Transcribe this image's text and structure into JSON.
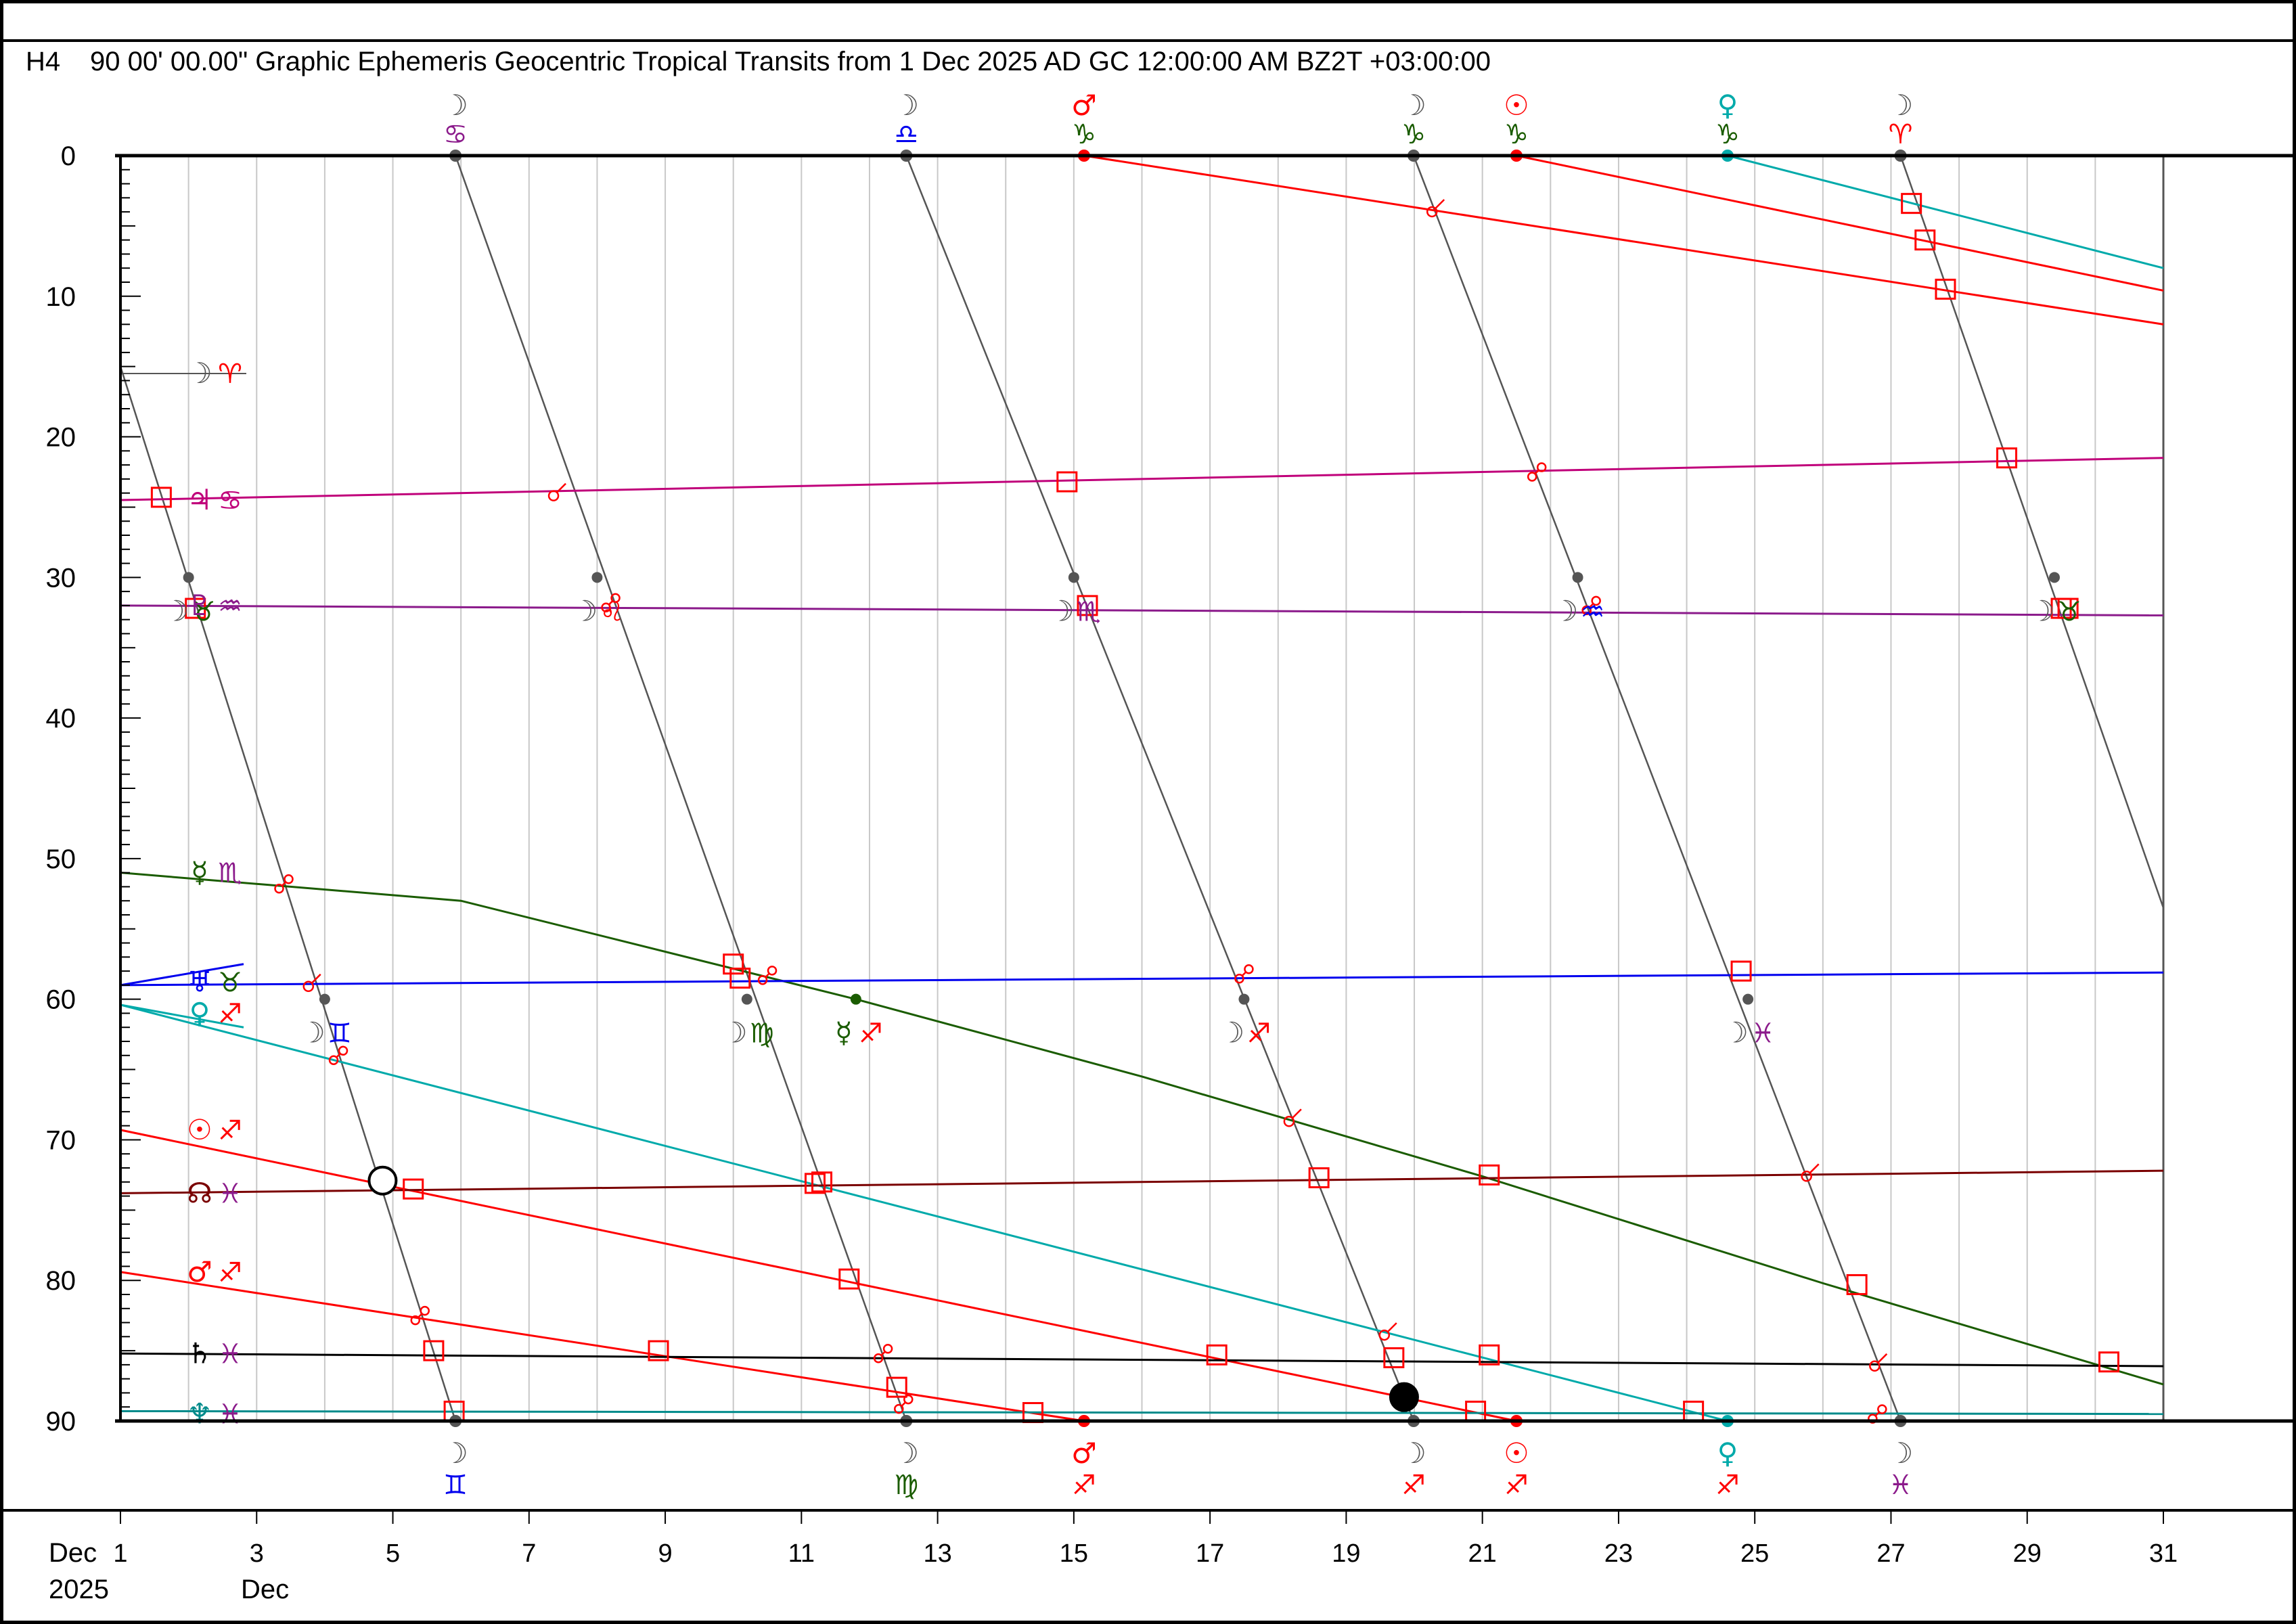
{
  "header": {
    "chart_id": "H4",
    "title": "90 00' 00.00\" Graphic Ephemeris Geocentric Tropical Transits from 1 Dec 2025 AD GC 12:00:00 AM BZ2T +03:00:00"
  },
  "x_axis": {
    "month_label": "Dec",
    "year_label": "2025",
    "start_month_label": "Dec",
    "ticks": [
      1,
      3,
      5,
      7,
      9,
      11,
      13,
      15,
      17,
      19,
      21,
      23,
      25,
      27,
      29,
      31
    ]
  },
  "colors": {
    "moon": "#555555",
    "sun": "#ff0000",
    "mars": "#ff0000",
    "venus": "#00aaaa",
    "mercury": "#1a5c00",
    "jupiter": "#c0007a",
    "pluto": "#8b1a8b",
    "uranus": "#0000ee",
    "node": "#7a0000",
    "saturn": "#000000",
    "neptune": "#008b8b",
    "aspect": "#ff0000",
    "grid": "#c8c8c8"
  },
  "chart_data": {
    "type": "line",
    "title": "90 00' 00.00\" Graphic Ephemeris Geocentric Tropical Transits from 1 Dec 2025 AD GC 12:00:00 AM BZ2T +03:00:00",
    "xlabel": "",
    "ylabel": "",
    "xlim": [
      1,
      31
    ],
    "ylim": [
      90,
      0
    ],
    "y_ticks": [
      0,
      10,
      20,
      30,
      40,
      50,
      60,
      70,
      80,
      90
    ],
    "grid": true,
    "series": [
      {
        "name": "Moon",
        "sign_start": "♈",
        "points": [
          [
            1.0,
            15
          ],
          [
            5.92,
            90
          ]
        ],
        "color": "#555555",
        "glyph": "☽"
      },
      {
        "name": "Moon",
        "points": [
          [
            5.92,
            0
          ],
          [
            12.54,
            90
          ]
        ],
        "color": "#555555"
      },
      {
        "name": "Moon",
        "points": [
          [
            12.54,
            0
          ],
          [
            19.99,
            90
          ]
        ],
        "color": "#555555"
      },
      {
        "name": "Moon",
        "points": [
          [
            19.99,
            0
          ],
          [
            27.14,
            90
          ]
        ],
        "color": "#555555"
      },
      {
        "name": "Moon",
        "points": [
          [
            27.14,
            0
          ],
          [
            31.0,
            53.5
          ]
        ],
        "color": "#555555"
      },
      {
        "name": "Jupiter",
        "sign_start": "♋",
        "points": [
          [
            1,
            24.5
          ],
          [
            31,
            21.5
          ]
        ],
        "color": "#c0007a",
        "glyph": "♃"
      },
      {
        "name": "Pluto",
        "sign_start": "♒",
        "points": [
          [
            1,
            32.0
          ],
          [
            31,
            32.7
          ]
        ],
        "color": "#8b1a8b",
        "glyph": "♇"
      },
      {
        "name": "Mercury",
        "sign_start": "♏",
        "points": [
          [
            1,
            51.0
          ],
          [
            6,
            53.0
          ],
          [
            11.8,
            60.0
          ],
          [
            16,
            65.5
          ],
          [
            21,
            72.6
          ],
          [
            26,
            80.2
          ],
          [
            31,
            87.4
          ]
        ],
        "color": "#1a5c00",
        "glyph": "☿"
      },
      {
        "name": "Uranus",
        "sign_start": "♉",
        "points": [
          [
            1,
            59.0
          ],
          [
            31,
            58.1
          ]
        ],
        "color": "#0000ee",
        "glyph": "♅"
      },
      {
        "name": "Venus",
        "sign_start": "♐",
        "points": [
          [
            1,
            60.4
          ],
          [
            24.6,
            90
          ]
        ],
        "color": "#00aaaa",
        "glyph": "♀"
      },
      {
        "name": "Venus",
        "points": [
          [
            24.6,
            0
          ],
          [
            31,
            8.0
          ]
        ],
        "color": "#00aaaa"
      },
      {
        "name": "Sun",
        "sign_start": "♐",
        "points": [
          [
            1,
            69.3
          ],
          [
            21.5,
            90
          ]
        ],
        "color": "#ff0000",
        "glyph": "☉"
      },
      {
        "name": "Sun",
        "points": [
          [
            21.5,
            0
          ],
          [
            31,
            9.6
          ]
        ],
        "color": "#ff0000"
      },
      {
        "name": "North Node",
        "sign_start": "♓",
        "points": [
          [
            1,
            73.8
          ],
          [
            31,
            72.2
          ]
        ],
        "color": "#7a0000",
        "glyph": "☊"
      },
      {
        "name": "Mars",
        "sign_start": "♐",
        "points": [
          [
            1,
            79.4
          ],
          [
            15.15,
            90
          ]
        ],
        "color": "#ff0000",
        "glyph": "♂"
      },
      {
        "name": "Mars",
        "points": [
          [
            15.15,
            0
          ],
          [
            31,
            12.0
          ]
        ],
        "color": "#ff0000"
      },
      {
        "name": "Saturn",
        "sign_start": "♓",
        "points": [
          [
            1,
            85.2
          ],
          [
            31,
            86.1
          ]
        ],
        "color": "#000000",
        "glyph": "♄"
      },
      {
        "name": "Neptune",
        "sign_start": "♓",
        "points": [
          [
            1,
            89.3
          ],
          [
            31,
            89.5
          ]
        ],
        "color": "#008b8b",
        "glyph": "♆"
      }
    ],
    "left_labels": [
      {
        "y": 15.5,
        "glyph": "☽",
        "sign": "♈",
        "color": "#555555",
        "sign_color": "#ff0000"
      },
      {
        "y": 24.5,
        "glyph": "♃",
        "sign": "♋",
        "color": "#c0007a",
        "sign_color": "#c0007a"
      },
      {
        "y": 32.0,
        "glyph": "♇",
        "sign": "♒",
        "color": "#8b1a8b",
        "sign_color": "#8b1a8b"
      },
      {
        "y": 51.0,
        "glyph": "☿",
        "sign": "♏",
        "color": "#1a5c00",
        "sign_color": "#8b1a8b"
      },
      {
        "y": 58.8,
        "glyph": "♅",
        "sign": "♉",
        "color": "#0000ee",
        "sign_color": "#1a5c00"
      },
      {
        "y": 61.0,
        "glyph": "♀",
        "sign": "♐",
        "color": "#00aaaa",
        "sign_color": "#ff0000"
      },
      {
        "y": 69.3,
        "glyph": "☉",
        "sign": "♐",
        "color": "#ff0000",
        "sign_color": "#ff0000"
      },
      {
        "y": 73.8,
        "glyph": "☊",
        "sign": "♓",
        "color": "#7a0000",
        "sign_color": "#8b1a8b"
      },
      {
        "y": 79.4,
        "glyph": "♂",
        "sign": "♐",
        "color": "#ff0000",
        "sign_color": "#ff0000"
      },
      {
        "y": 85.2,
        "glyph": "♄",
        "sign": "♓",
        "color": "#000000",
        "sign_color": "#8b1a8b"
      },
      {
        "y": 89.5,
        "glyph": "♆",
        "sign": "♓",
        "color": "#008b8b",
        "sign_color": "#8b1a8b"
      }
    ],
    "top_labels": [
      {
        "x": 5.92,
        "glyph": "☽",
        "sign": "♋",
        "color": "#555555",
        "sign_color": "#8b1a8b",
        "dot": "#555555"
      },
      {
        "x": 12.54,
        "glyph": "☽",
        "sign": "♎",
        "color": "#555555",
        "sign_color": "#0000ee",
        "dot": "#555555"
      },
      {
        "x": 15.15,
        "glyph": "♂",
        "sign": "♑",
        "color": "#ff0000",
        "sign_color": "#1a5c00",
        "dot": "#ff0000"
      },
      {
        "x": 19.99,
        "glyph": "☽",
        "sign": "♑",
        "color": "#555555",
        "sign_color": "#1a5c00",
        "dot": "#555555"
      },
      {
        "x": 21.5,
        "glyph": "☉",
        "sign": "♑",
        "color": "#ff0000",
        "sign_color": "#1a5c00",
        "dot": "#ff0000"
      },
      {
        "x": 24.6,
        "glyph": "♀",
        "sign": "♑",
        "color": "#00aaaa",
        "sign_color": "#1a5c00",
        "dot": "#00aaaa"
      },
      {
        "x": 27.14,
        "glyph": "☽",
        "sign": "♈",
        "color": "#555555",
        "sign_color": "#ff0000",
        "dot": "#555555"
      }
    ],
    "bottom_labels": [
      {
        "x": 5.92,
        "glyph": "☽",
        "sign": "♊",
        "color": "#555555",
        "sign_color": "#0000ee",
        "dot": "#555555"
      },
      {
        "x": 12.54,
        "glyph": "☽",
        "sign": "♍",
        "color": "#555555",
        "sign_color": "#1a5c00",
        "dot": "#555555"
      },
      {
        "x": 15.15,
        "glyph": "♂",
        "sign": "♐",
        "color": "#ff0000",
        "sign_color": "#ff0000",
        "dot": "#ff0000"
      },
      {
        "x": 19.99,
        "glyph": "☽",
        "sign": "♐",
        "color": "#555555",
        "sign_color": "#ff0000",
        "dot": "#555555"
      },
      {
        "x": 21.5,
        "glyph": "☉",
        "sign": "♐",
        "color": "#ff0000",
        "sign_color": "#ff0000",
        "dot": "#ff0000"
      },
      {
        "x": 24.6,
        "glyph": "♀",
        "sign": "♐",
        "color": "#00aaaa",
        "sign_color": "#ff0000",
        "dot": "#00aaaa"
      },
      {
        "x": 27.14,
        "glyph": "☽",
        "sign": "♓",
        "color": "#555555",
        "sign_color": "#8b1a8b",
        "dot": "#555555"
      }
    ],
    "ingress_labels": [
      {
        "x": 2.0,
        "y": 30,
        "glyph": "☽",
        "sign": "♉",
        "sign_color": "#1a5c00"
      },
      {
        "x": 4.0,
        "y": 60,
        "glyph": "☽",
        "sign": "♊",
        "sign_color": "#0000ee"
      },
      {
        "x": 8.0,
        "y": 30,
        "glyph": "☽",
        "sign": "♌",
        "sign_color": "#ff0000"
      },
      {
        "x": 10.2,
        "y": 60,
        "glyph": "☽",
        "sign": "♍",
        "sign_color": "#1a5c00"
      },
      {
        "x": 15.0,
        "y": 30,
        "glyph": "☽",
        "sign": "♏",
        "sign_color": "#8b1a8b"
      },
      {
        "x": 17.5,
        "y": 60,
        "glyph": "☽",
        "sign": "♐",
        "sign_color": "#ff0000"
      },
      {
        "x": 22.4,
        "y": 30,
        "glyph": "☽",
        "sign": "♒",
        "sign_color": "#0000ee"
      },
      {
        "x": 24.9,
        "y": 60,
        "glyph": "☽",
        "sign": "♓",
        "sign_color": "#8b1a8b"
      },
      {
        "x": 29.4,
        "y": 30,
        "glyph": "☽",
        "sign": "♉",
        "sign_color": "#1a5c00"
      },
      {
        "x": 11.8,
        "y": 60,
        "glyph": "☿",
        "sign": "♐",
        "color": "#1a5c00",
        "sign_color": "#ff0000"
      }
    ],
    "squares": [
      [
        1.6,
        24.3
      ],
      [
        2.1,
        32.2
      ],
      [
        5.3,
        73.5
      ],
      [
        5.6,
        85.0
      ],
      [
        5.9,
        89.3
      ],
      [
        10.0,
        57.5
      ],
      [
        10.1,
        58.5
      ],
      [
        11.2,
        73.1
      ],
      [
        11.3,
        73.0
      ],
      [
        11.7,
        79.9
      ],
      [
        12.4,
        87.6
      ],
      [
        14.4,
        89.4
      ],
      [
        14.9,
        23.2
      ],
      [
        15.2,
        32.0
      ],
      [
        17.1,
        85.3
      ],
      [
        18.6,
        72.7
      ],
      [
        19.7,
        85.5
      ],
      [
        20.9,
        89.3
      ],
      [
        21.1,
        72.5
      ],
      [
        21.1,
        85.3
      ],
      [
        24.1,
        89.3
      ],
      [
        24.8,
        58.0
      ],
      [
        26.5,
        80.3
      ],
      [
        27.3,
        3.4
      ],
      [
        27.5,
        6.0
      ],
      [
        27.8,
        9.5
      ],
      [
        28.7,
        21.5
      ],
      [
        29.5,
        32.2
      ],
      [
        30.2,
        85.8
      ],
      [
        8.9,
        85.0
      ],
      [
        29.6,
        32.2
      ]
    ],
    "oppositions": [
      [
        3.4,
        51.8
      ],
      [
        4.2,
        64.0
      ],
      [
        5.4,
        82.5
      ],
      [
        8.2,
        31.8
      ],
      [
        10.5,
        58.3
      ],
      [
        12.2,
        85.2
      ],
      [
        12.5,
        88.8
      ],
      [
        17.5,
        58.2
      ],
      [
        21.8,
        22.5
      ],
      [
        22.6,
        32.0
      ],
      [
        26.8,
        89.5
      ]
    ],
    "conjunctions": [
      [
        3.8,
        58.9
      ],
      [
        7.4,
        24.0
      ],
      [
        18.2,
        68.5
      ],
      [
        19.6,
        83.7
      ],
      [
        20.3,
        3.8
      ],
      [
        25.8,
        72.4
      ],
      [
        26.8,
        85.9
      ]
    ],
    "lunations": [
      {
        "x": 4.85,
        "y": 72.9,
        "kind": "full"
      },
      {
        "x": 19.85,
        "y": 88.3,
        "kind": "new"
      }
    ]
  }
}
